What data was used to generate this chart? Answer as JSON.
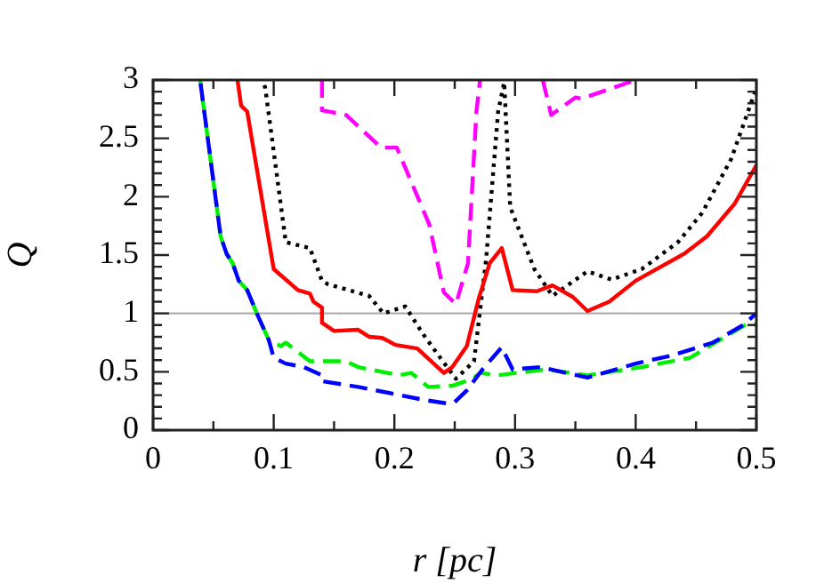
{
  "chart_data": {
    "type": "line",
    "xlabel": "r [pc]",
    "ylabel": "Q",
    "xlim": [
      0,
      0.5
    ],
    "xticks": [
      0,
      {
        "value": 0.05,
        "label": null
      },
      0.1,
      {
        "value": 0.15,
        "label": null
      },
      0.2,
      {
        "value": 0.25,
        "label": null
      },
      0.3,
      {
        "value": 0.35,
        "label": null
      },
      0.4,
      {
        "value": 0.45,
        "label": null
      },
      0.5
    ],
    "ylim": [
      0,
      3
    ],
    "yticks": [
      0,
      {
        "value": 0.1,
        "label": null
      },
      {
        "value": 0.2,
        "label": null
      },
      {
        "value": 0.3,
        "label": null
      },
      {
        "value": 0.4,
        "label": null
      },
      0.5,
      {
        "value": 0.6,
        "label": null
      },
      {
        "value": 0.7,
        "label": null
      },
      {
        "value": 0.8,
        "label": null
      },
      {
        "value": 0.9,
        "label": null
      },
      1,
      {
        "value": 1.1,
        "label": null
      },
      {
        "value": 1.2,
        "label": null
      },
      {
        "value": 1.3,
        "label": null
      },
      {
        "value": 1.4,
        "label": null
      },
      1.5,
      {
        "value": 1.6,
        "label": null
      },
      {
        "value": 1.7,
        "label": null
      },
      {
        "value": 1.8,
        "label": null
      },
      {
        "value": 1.9,
        "label": null
      },
      2,
      {
        "value": 2.1,
        "label": null
      },
      {
        "value": 2.2,
        "label": null
      },
      {
        "value": 2.3,
        "label": null
      },
      {
        "value": 2.4,
        "label": null
      },
      2.5,
      {
        "value": 2.6,
        "label": null
      },
      {
        "value": 2.7,
        "label": null
      },
      {
        "value": 2.8,
        "label": null
      },
      {
        "value": 2.9,
        "label": null
      },
      3
    ],
    "grid": false,
    "legend": false,
    "marker": "none",
    "ref_lines": [
      {
        "axis": "y",
        "value": 1,
        "color": "#b0b0b0"
      }
    ],
    "series": [
      {
        "color": "#ff00ff",
        "line_style": "dashed",
        "x": [
          0.14,
          0.14,
          0.16,
          0.189,
          0.202,
          0.229,
          0.241,
          0.251,
          0.261,
          0.268,
          0.271,
          0.3,
          0.323,
          0.33,
          0.35,
          0.355,
          0.4
        ],
        "values": [
          3,
          2.74,
          2.7,
          2.42,
          2.42,
          1.76,
          1.18,
          1.08,
          1.43,
          2.73,
          3,
          null,
          3,
          2.7,
          2.85,
          2.84,
          3
        ]
      },
      {
        "color": "#000000",
        "line_style": "dotted",
        "x": [
          0.091,
          0.093,
          0.11,
          0.13,
          0.14,
          0.145,
          0.179,
          0.191,
          0.209,
          0.224,
          0.238,
          0.251,
          0.266,
          0.276,
          0.286,
          0.291,
          0.296,
          0.316,
          0.331,
          0.36,
          0.38,
          0.405,
          0.435,
          0.455,
          0.479,
          0.5
        ],
        "values": [
          3,
          2.93,
          1.61,
          1.56,
          1.28,
          1.25,
          1.15,
          1.0,
          1.06,
          0.82,
          0.62,
          0.44,
          0.59,
          1.46,
          2.73,
          2.98,
          1.91,
          1.38,
          1.15,
          1.36,
          1.29,
          1.38,
          1.61,
          1.86,
          2.32,
          2.93
        ]
      },
      {
        "color": "#ff0000",
        "line_style": "solid",
        "x": [
          0.07,
          0.073,
          0.078,
          0.1,
          0.12,
          0.13,
          0.133,
          0.14,
          0.14,
          0.15,
          0.17,
          0.179,
          0.19,
          0.201,
          0.219,
          0.241,
          0.248,
          0.26,
          0.27,
          0.279,
          0.289,
          0.298,
          0.318,
          0.331,
          0.348,
          0.36,
          0.378,
          0.4,
          0.44,
          0.459,
          0.482,
          0.5
        ],
        "values": [
          3,
          2.78,
          2.73,
          1.38,
          1.2,
          1.17,
          1.1,
          1.05,
          0.92,
          0.85,
          0.86,
          0.8,
          0.79,
          0.73,
          0.7,
          0.49,
          0.54,
          0.72,
          1.13,
          1.43,
          1.56,
          1.2,
          1.19,
          1.24,
          1.14,
          1.02,
          1.1,
          1.28,
          1.51,
          1.66,
          1.94,
          2.27
        ]
      },
      {
        "color": "#00ee00",
        "line_style": "dashed",
        "x": [
          0.039,
          0.056,
          0.061,
          0.066,
          0.071,
          0.078,
          0.086,
          0.096,
          0.106,
          0.11,
          0.13,
          0.16,
          0.17,
          0.204,
          0.214,
          0.228,
          0.248,
          0.265,
          0.271,
          0.286,
          0.301,
          0.326,
          0.36,
          0.405,
          0.445,
          0.474,
          0.494,
          0.5
        ],
        "values": [
          3,
          1.66,
          1.51,
          1.43,
          1.28,
          1.2,
          1.0,
          0.77,
          0.72,
          0.75,
          0.59,
          0.59,
          0.54,
          0.47,
          0.49,
          0.37,
          0.38,
          0.44,
          0.49,
          0.47,
          0.49,
          0.52,
          0.47,
          0.54,
          0.62,
          0.8,
          0.92,
          0.9
        ]
      },
      {
        "color": "#0000ff",
        "line_style": "dashed",
        "x": [
          0.039,
          0.056,
          0.061,
          0.066,
          0.071,
          0.078,
          0.086,
          0.096,
          0.1,
          0.11,
          0.125,
          0.14,
          0.14,
          0.17,
          0.2,
          0.224,
          0.243,
          0.25,
          0.26,
          0.273,
          0.289,
          0.298,
          0.321,
          0.36,
          0.4,
          0.43,
          0.464,
          0.489,
          0.5
        ],
        "values": [
          3,
          1.66,
          1.51,
          1.43,
          1.28,
          1.2,
          1.0,
          0.77,
          0.62,
          0.57,
          0.54,
          0.47,
          0.42,
          0.37,
          0.31,
          0.26,
          0.23,
          0.24,
          0.34,
          0.52,
          0.71,
          0.52,
          0.54,
          0.45,
          0.57,
          0.64,
          0.75,
          0.9,
          1.0
        ]
      }
    ]
  }
}
